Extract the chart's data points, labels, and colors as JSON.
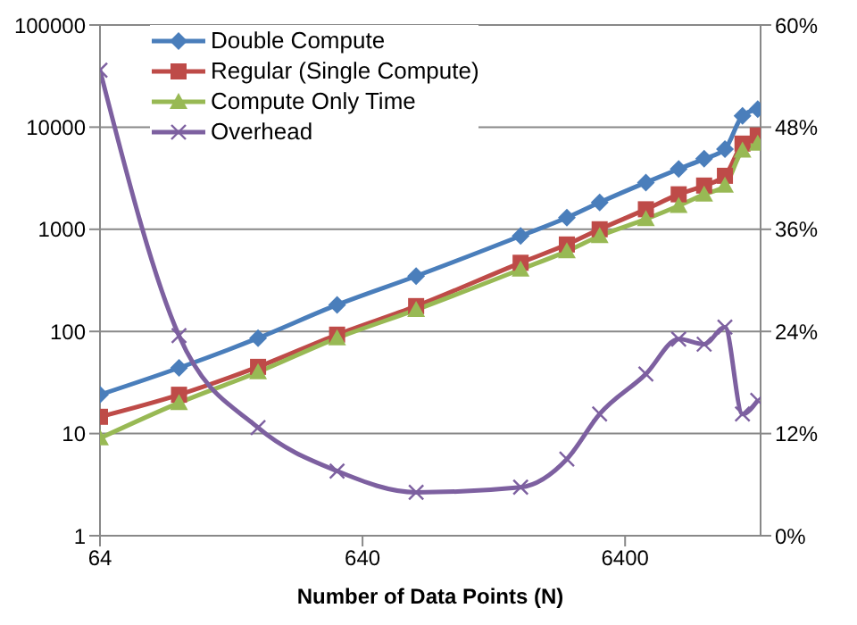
{
  "chart_data": {
    "type": "line",
    "xlabel": "Number of Data Points (N)",
    "log": "xy",
    "x": [
      64,
      128,
      256,
      512,
      1024,
      2560,
      3840,
      5120,
      7680,
      10240,
      12800,
      15360,
      17920,
      20480
    ],
    "xlim": [
      64,
      21000
    ],
    "xticks": [
      64,
      640,
      6400
    ],
    "ylim": [
      1,
      100000
    ],
    "yticks": [
      1,
      10,
      100,
      1000,
      10000,
      100000
    ],
    "y2lim": [
      0,
      60
    ],
    "y2ticks": [
      {
        "value": 0,
        "label": "0%"
      },
      {
        "value": 12,
        "label": "12%"
      },
      {
        "value": 24,
        "label": "24%"
      },
      {
        "value": 36,
        "label": "36%"
      },
      {
        "value": 48,
        "label": "48%"
      },
      {
        "value": 60,
        "label": "60%"
      }
    ],
    "grid": "y",
    "legend": "top left",
    "series": [
      {
        "name": "Double Compute",
        "color": "#4a7ebb",
        "marker": "diamond",
        "values": [
          24,
          44,
          86,
          182,
          348,
          860,
          1300,
          1830,
          2870,
          3890,
          4900,
          6100,
          12900,
          15000
        ]
      },
      {
        "name": "Regular (Single Compute)",
        "color": "#be4b48",
        "marker": "square",
        "values": [
          14.6,
          24,
          45,
          93,
          177,
          470,
          710,
          1000,
          1570,
          2200,
          2680,
          3340,
          6900,
          8300
        ]
      },
      {
        "name": "Compute Only Time",
        "color": "#98b954",
        "marker": "triangle",
        "values": [
          9,
          20,
          40,
          86,
          163,
          405,
          610,
          860,
          1260,
          1700,
          2200,
          2680,
          5900,
          6900
        ]
      },
      {
        "name": "Overhead",
        "color": "#7d60a0",
        "marker": "cross",
        "axis": "y2",
        "values": [
          54.7,
          23.5,
          12.7,
          7.6,
          5.1,
          5.7,
          9.0,
          14.3,
          19.0,
          23.1,
          22.5,
          24.5,
          14.3,
          15.9
        ]
      }
    ]
  }
}
